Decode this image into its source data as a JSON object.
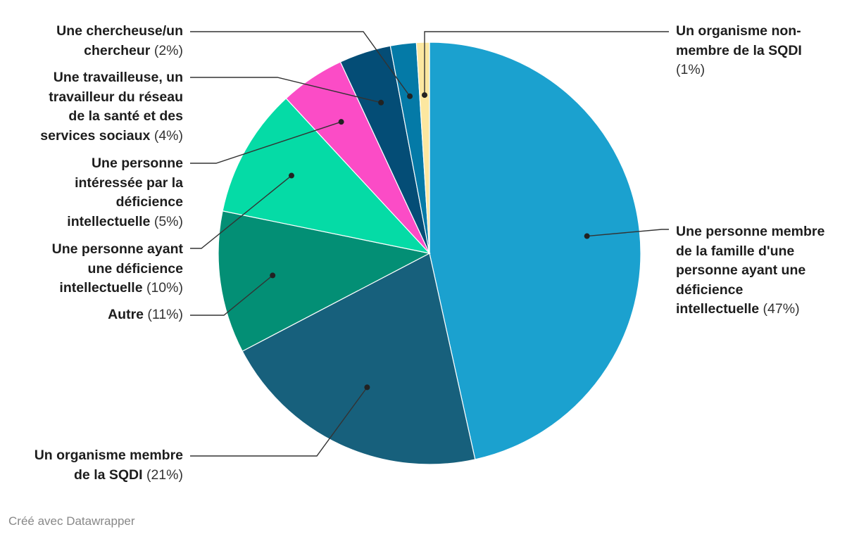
{
  "chart_data": {
    "type": "pie",
    "title": "",
    "slices": [
      {
        "label": "Une personne membre de la famille d'une personne ayant une déficience intellectuelle",
        "percent_label": "(47%)",
        "value": 47,
        "color": "#1ba1cf"
      },
      {
        "label": "Un organisme membre de la SQDI",
        "percent_label": "(21%)",
        "value": 21,
        "color": "#17607c"
      },
      {
        "label": "Autre",
        "percent_label": "(11%)",
        "value": 11,
        "color": "#038f75"
      },
      {
        "label": "Une personne ayant une déficience intellectuelle",
        "percent_label": "(10%)",
        "value": 10,
        "color": "#05dba6"
      },
      {
        "label": "Une personne intéressée par la déficience intellectuelle",
        "percent_label": "(5%)",
        "value": 5,
        "color": "#fb4cc6"
      },
      {
        "label": "Une travailleuse, un travailleur du réseau de la santé et des services sociaux",
        "percent_label": "(4%)",
        "value": 4,
        "color": "#044d76"
      },
      {
        "label": "Une chercheuse/un chercheur",
        "percent_label": "(2%)",
        "value": 2,
        "color": "#047aa7"
      },
      {
        "label": "Un organisme non-membre de la SQDI",
        "percent_label": "(1%)",
        "value": 1,
        "color": "#fce7a0"
      }
    ]
  },
  "labels": {
    "l0": {
      "line1": "Une personne membre",
      "line2": "de la famille d'une",
      "line3": "personne ayant une",
      "line4": "déficience",
      "line5": "intellectuelle"
    },
    "l1": {
      "line1": "Un organisme membre",
      "line2": "de la SQDI"
    },
    "l2": {
      "line1": "Autre"
    },
    "l3": {
      "line1": "Une personne ayant",
      "line2": "une déficience",
      "line3": "intellectuelle"
    },
    "l4": {
      "line1": "Une personne",
      "line2": "intéressée par la",
      "line3": "déficience",
      "line4": "intellectuelle"
    },
    "l5": {
      "line1": "Une travailleuse, un",
      "line2": "travailleur du réseau",
      "line3": "de la santé et des",
      "line4": "services sociaux"
    },
    "l6": {
      "line1": "Une chercheuse/un",
      "line2": "chercheur"
    },
    "l7": {
      "line1": "Un organisme non-",
      "line2": "membre de la SQDI"
    }
  },
  "footer": {
    "credit": "Créé avec Datawrapper"
  }
}
